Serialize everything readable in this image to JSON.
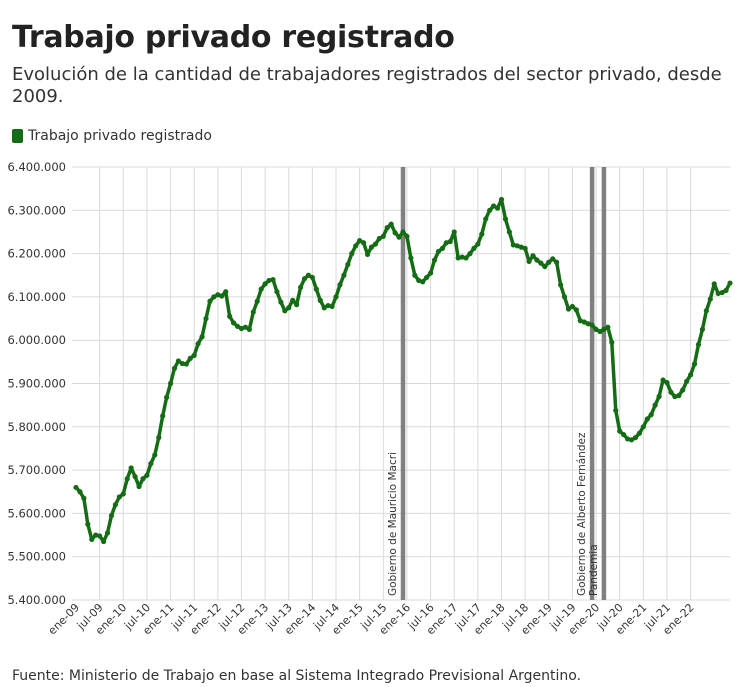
{
  "header": {
    "title": "Trabajo privado registrado",
    "subtitle": "Evolución de la cantidad de trabajadores registrados del sector privado, desde 2009."
  },
  "footer": {
    "source": "Fuente: Ministerio de Trabajo en base al Sistema Integrado Previsional Argentino."
  },
  "colors": {
    "line": "#146c14",
    "marker": "#808080",
    "grid": "#d9d9d9"
  },
  "chart_data": {
    "type": "line",
    "title": "Trabajo privado registrado",
    "subtitle": "Evolución de la cantidad de trabajadores registrados del sector privado, desde 2009.",
    "xlabel": "",
    "ylabel": "",
    "ylim": [
      5400000,
      6400000
    ],
    "y_ticks": [
      "5.400.000",
      "5.500.000",
      "5.600.000",
      "5.700.000",
      "5.800.000",
      "5.900.000",
      "6.000.000",
      "6.100.000",
      "6.200.000",
      "6.300.000",
      "6.400.000"
    ],
    "x_ticks": [
      "ene-09",
      "jul-09",
      "ene-10",
      "jul-10",
      "ene-11",
      "jul-11",
      "ene-12",
      "jul-12",
      "ene-13",
      "jul-13",
      "ene-14",
      "jul-14",
      "ene-15",
      "jul-15",
      "ene-16",
      "jul-16",
      "ene-17",
      "jul-17",
      "ene-18",
      "jul-18",
      "ene-19",
      "jul-19",
      "ene-20",
      "jul-20",
      "ene-21",
      "jul-21",
      "ene-22"
    ],
    "grid": true,
    "legend": "top-left",
    "series": [
      {
        "name": "Trabajo privado registrado",
        "start": "ene-09",
        "values": [
          5660000,
          5650000,
          5635000,
          5575000,
          5540000,
          5550000,
          5548000,
          5535000,
          5555000,
          5595000,
          5620000,
          5638000,
          5645000,
          5680000,
          5705000,
          5685000,
          5662000,
          5680000,
          5688000,
          5715000,
          5735000,
          5775000,
          5825000,
          5868000,
          5900000,
          5935000,
          5952000,
          5946000,
          5945000,
          5958000,
          5965000,
          5992000,
          6008000,
          6050000,
          6090000,
          6100000,
          6105000,
          6102000,
          6112000,
          6055000,
          6040000,
          6032000,
          6027000,
          6030000,
          6025000,
          6065000,
          6090000,
          6118000,
          6130000,
          6138000,
          6140000,
          6112000,
          6088000,
          6068000,
          6075000,
          6092000,
          6082000,
          6122000,
          6142000,
          6150000,
          6145000,
          6118000,
          6092000,
          6075000,
          6080000,
          6078000,
          6100000,
          6128000,
          6150000,
          6175000,
          6200000,
          6218000,
          6230000,
          6225000,
          6198000,
          6215000,
          6222000,
          6235000,
          6240000,
          6260000,
          6268000,
          6248000,
          6238000,
          6250000,
          6240000,
          6190000,
          6150000,
          6138000,
          6135000,
          6145000,
          6155000,
          6185000,
          6205000,
          6212000,
          6225000,
          6228000,
          6250000,
          6190000,
          6192000,
          6190000,
          6200000,
          6212000,
          6222000,
          6245000,
          6280000,
          6300000,
          6310000,
          6305000,
          6325000,
          6280000,
          6250000,
          6220000,
          6218000,
          6215000,
          6212000,
          6182000,
          6195000,
          6185000,
          6178000,
          6170000,
          6180000,
          6188000,
          6180000,
          6128000,
          6100000,
          6072000,
          6078000,
          6070000,
          6045000,
          6042000,
          6038000,
          6035000,
          6025000,
          6020000,
          6025000,
          6030000,
          5995000,
          5838000,
          5790000,
          5782000,
          5772000,
          5770000,
          5775000,
          5785000,
          5800000,
          5818000,
          5828000,
          5850000,
          5870000,
          5908000,
          5902000,
          5880000,
          5870000,
          5872000,
          5885000,
          5905000,
          5920000,
          5945000,
          5990000,
          6025000,
          6068000,
          6095000,
          6130000,
          6108000,
          6110000,
          6115000,
          6132000
        ]
      }
    ],
    "annotations": [
      {
        "label": "Gobierno de Mauricio Macri",
        "date": "dic-15"
      },
      {
        "label": "Gobierno de Alberto Fernández",
        "date": "dic-19"
      },
      {
        "label": "Pandemia",
        "date": "mar-20"
      }
    ]
  }
}
